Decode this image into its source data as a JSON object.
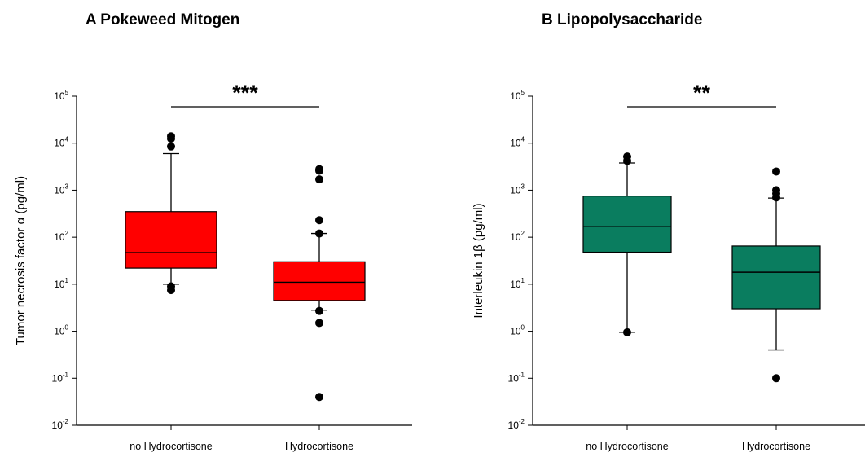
{
  "chart_data": [
    {
      "type": "box",
      "title": "A Pokeweed Mitogen",
      "ylabel": "Tumor necrosis factor α (pg/ml)",
      "yscale": "log",
      "ylim": [
        0.01,
        100000
      ],
      "y_tick_base": "10",
      "y_tick_exponents": [
        "-2",
        "-1",
        "0",
        "1",
        "2",
        "3",
        "4",
        "5"
      ],
      "categories": [
        "no Hydrocortisone",
        "Hydrocortisone"
      ],
      "box_color": "#ff0000",
      "significance": "***",
      "boxes": [
        {
          "category": "no Hydrocortisone",
          "whisker_low": 10,
          "q1": 22,
          "median": 47,
          "q3": 350,
          "whisker_high": 6000,
          "outliers": [
            7.5,
            9,
            8500,
            12500,
            14000
          ]
        },
        {
          "category": "Hydrocortisone",
          "whisker_low": 2.8,
          "q1": 4.5,
          "median": 11,
          "q3": 30,
          "whisker_high": 120,
          "outliers": [
            0.04,
            1.5,
            2.7,
            120,
            230,
            1700,
            2600,
            2800
          ]
        }
      ]
    },
    {
      "type": "box",
      "title": "B Lipopolysaccharide",
      "ylabel": "Interleukin 1β (pg/ml)",
      "yscale": "log",
      "ylim": [
        0.01,
        100000
      ],
      "y_tick_base": "10",
      "y_tick_exponents": [
        "-2",
        "-1",
        "0",
        "1",
        "2",
        "3",
        "4",
        "5"
      ],
      "categories": [
        "no Hydrocortisone",
        "Hydrocortisone"
      ],
      "box_color": "#0a7d5f",
      "significance": "**",
      "boxes": [
        {
          "category": "no Hydrocortisone",
          "whisker_low": 0.95,
          "q1": 48,
          "median": 170,
          "q3": 750,
          "whisker_high": 3800,
          "outliers": [
            0.95,
            4200,
            5200
          ]
        },
        {
          "category": "Hydrocortisone",
          "whisker_low": 0.4,
          "q1": 3,
          "median": 18,
          "q3": 65,
          "whisker_high": 680,
          "outliers": [
            0.1,
            700,
            850,
            1000,
            2500
          ]
        }
      ]
    }
  ]
}
